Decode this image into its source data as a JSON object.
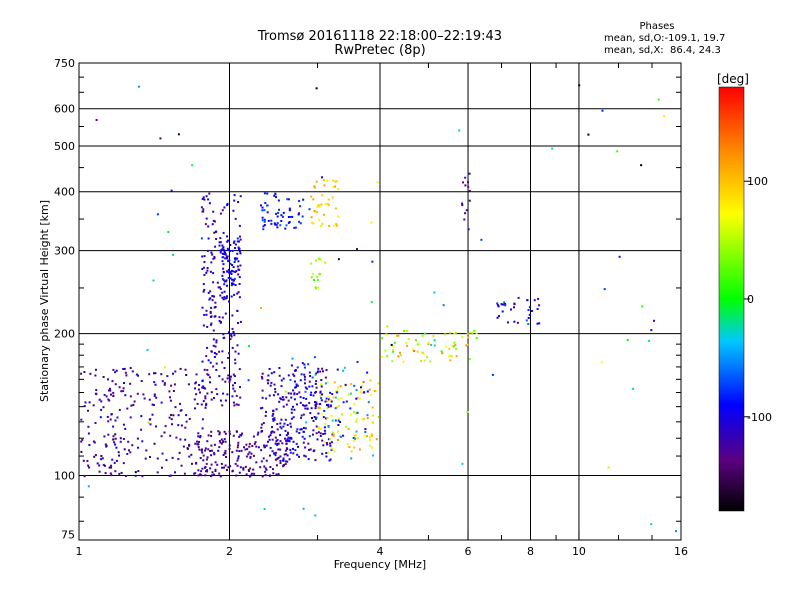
{
  "chart_data": {
    "type": "scatter",
    "title": "Tromsø 20161118 22:18:00–22:19:43",
    "subtitle": "RwPretec (8p)",
    "xlabel": "Frequency [MHz]",
    "ylabel": "Stationary phase Virtual Height [km]",
    "x_scale": "log",
    "y_scale": "log",
    "xlim": [
      1,
      16
    ],
    "ylim": [
      73,
      750
    ],
    "x_ticks": [
      "1",
      "2",
      "4",
      "6",
      "8",
      "10",
      "16"
    ],
    "x_tick_values": [
      1,
      2,
      4,
      6,
      8,
      10,
      16
    ],
    "y_ticks": [
      "750",
      "600",
      "500",
      "400",
      "300",
      "200",
      "100",
      "75"
    ],
    "y_tick_values": [
      750,
      600,
      500,
      400,
      300,
      200,
      100,
      75
    ],
    "grid_x": [
      2,
      4,
      6,
      8,
      10
    ],
    "grid_y": [
      600,
      500,
      400,
      300,
      200,
      100
    ],
    "colorbar": {
      "label": "[deg]",
      "range": [
        -180,
        180
      ],
      "ticks": [
        "100",
        "0",
        "-100"
      ],
      "tick_values": [
        100,
        0,
        -100
      ]
    },
    "phases_box": {
      "heading": "Phases",
      "line_o": "mean, sd,O:-109.1, 19.7",
      "line_x": "mean, sd,X:  86.4, 24.3"
    },
    "clusters": [
      {
        "f0": 1.0,
        "f1": 1.8,
        "h0": 100,
        "h1": 170,
        "n": 260,
        "phase": -125,
        "sd": 15
      },
      {
        "f0": 1.75,
        "f1": 2.1,
        "h0": 140,
        "h1": 400,
        "n": 220,
        "phase": -115,
        "sd": 14
      },
      {
        "f0": 1.9,
        "f1": 2.1,
        "h0": 240,
        "h1": 320,
        "n": 80,
        "phase": -100,
        "sd": 12
      },
      {
        "f0": 1.7,
        "f1": 2.6,
        "h0": 100,
        "h1": 125,
        "n": 200,
        "phase": -128,
        "sd": 10
      },
      {
        "f0": 2.3,
        "f1": 3.2,
        "h0": 108,
        "h1": 170,
        "n": 260,
        "phase": -110,
        "sd": 15
      },
      {
        "f0": 2.3,
        "f1": 2.8,
        "h0": 330,
        "h1": 400,
        "n": 60,
        "phase": -85,
        "sd": 12
      },
      {
        "f0": 2.9,
        "f1": 3.3,
        "h0": 340,
        "h1": 430,
        "n": 40,
        "phase": 95,
        "sd": 15
      },
      {
        "f0": 2.9,
        "f1": 3.1,
        "h0": 250,
        "h1": 290,
        "n": 15,
        "phase": 40,
        "sd": 8
      },
      {
        "f0": 3.0,
        "f1": 4.0,
        "h0": 112,
        "h1": 160,
        "n": 90,
        "phase": 85,
        "sd": 25
      },
      {
        "f0": 2.6,
        "f1": 3.8,
        "h0": 120,
        "h1": 180,
        "n": 60,
        "phase": -70,
        "sd": 25
      },
      {
        "f0": 4.0,
        "f1": 6.4,
        "h0": 175,
        "h1": 205,
        "n": 70,
        "phase": 70,
        "sd": 40
      },
      {
        "f0": 6.8,
        "f1": 8.4,
        "h0": 210,
        "h1": 240,
        "n": 35,
        "phase": -100,
        "sd": 20
      },
      {
        "f0": 5.7,
        "f1": 6.1,
        "h0": 330,
        "h1": 440,
        "n": 14,
        "phase": -130,
        "sd": 8
      },
      {
        "f0": 1.0,
        "f1": 16,
        "h0": 75,
        "h1": 700,
        "n": 70,
        "phase": -40,
        "sd": 90
      }
    ]
  }
}
